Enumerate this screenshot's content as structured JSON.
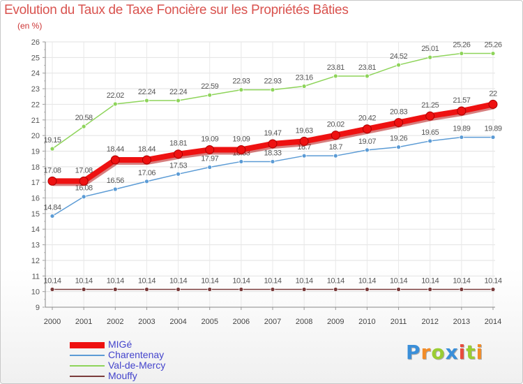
{
  "chart_data": {
    "type": "line",
    "title": "Evolution du Taux de Taxe Foncière sur les Propriétés Bâties",
    "subtitle": "(en %)",
    "x": [
      "2000",
      "2001",
      "2002",
      "2003",
      "2004",
      "2005",
      "2006",
      "2007",
      "2008",
      "2009",
      "2010",
      "2011",
      "2012",
      "2013",
      "2014"
    ],
    "ylim": [
      9,
      26
    ],
    "yticks": [
      9,
      10,
      11,
      12,
      13,
      14,
      15,
      16,
      17,
      18,
      19,
      20,
      21,
      22,
      23,
      24,
      25,
      26
    ],
    "grid": true,
    "legend_position": "bottom-left",
    "series": [
      {
        "name": "MIGé",
        "color": "#ee1111",
        "values": [
          17.08,
          17.08,
          18.44,
          18.44,
          18.81,
          19.09,
          19.09,
          19.47,
          19.63,
          20.02,
          20.42,
          20.83,
          21.25,
          21.57,
          22
        ],
        "labels": [
          "17.08",
          "17.08",
          "18.44",
          "18.44",
          "18.81",
          "19.09",
          "19.09",
          "19.47",
          "19.63",
          "20.02",
          "20.42",
          "20.83",
          "21.25",
          "21.57",
          "22"
        ]
      },
      {
        "name": "Charentenay",
        "color": "#5b9bd5",
        "values": [
          14.84,
          16.08,
          16.56,
          17.06,
          17.53,
          17.97,
          18.33,
          18.33,
          18.7,
          18.7,
          19.07,
          19.26,
          19.65,
          19.89,
          19.89
        ],
        "labels": [
          "14.84",
          "16.08",
          "16.56",
          "17.06",
          "17.53",
          "17.97",
          "18.33",
          "18.33",
          "18.7",
          "18.7",
          "19.07",
          "19.26",
          "19.65",
          "19.89",
          "19.89"
        ]
      },
      {
        "name": "Val-de-Mercy",
        "color": "#8ed45a",
        "values": [
          19.15,
          20.58,
          22.02,
          22.24,
          22.24,
          22.59,
          22.93,
          22.93,
          23.16,
          23.81,
          23.81,
          24.52,
          25.01,
          25.26,
          25.26
        ],
        "labels": [
          "19.15",
          "20.58",
          "22.02",
          "22.24",
          "22.24",
          "22.59",
          "22.93",
          "22.93",
          "23.16",
          "23.81",
          "23.81",
          "24.52",
          "25.01",
          "25.26",
          "25.26"
        ]
      },
      {
        "name": "Mouffy",
        "color": "#7a3b3b",
        "values": [
          10.14,
          10.14,
          10.14,
          10.14,
          10.14,
          10.14,
          10.14,
          10.14,
          10.14,
          10.14,
          10.14,
          10.14,
          10.14,
          10.14,
          10.14
        ],
        "labels": [
          "10.14",
          "10.14",
          "10.14",
          "10.14",
          "10.14",
          "10.14",
          "10.14",
          "10.14",
          "10.14",
          "10.14",
          "10.14",
          "10.14",
          "10.14",
          "10.14",
          "10.14"
        ]
      }
    ]
  },
  "logo": {
    "letters": [
      "P",
      "r",
      "o",
      "x",
      "i",
      "t",
      "i"
    ],
    "colors": [
      "#3a8fd9",
      "#f28c28",
      "#9acd32",
      "#3a8fd9",
      "#e84c3d",
      "#9acd32",
      "#f28c28"
    ]
  }
}
